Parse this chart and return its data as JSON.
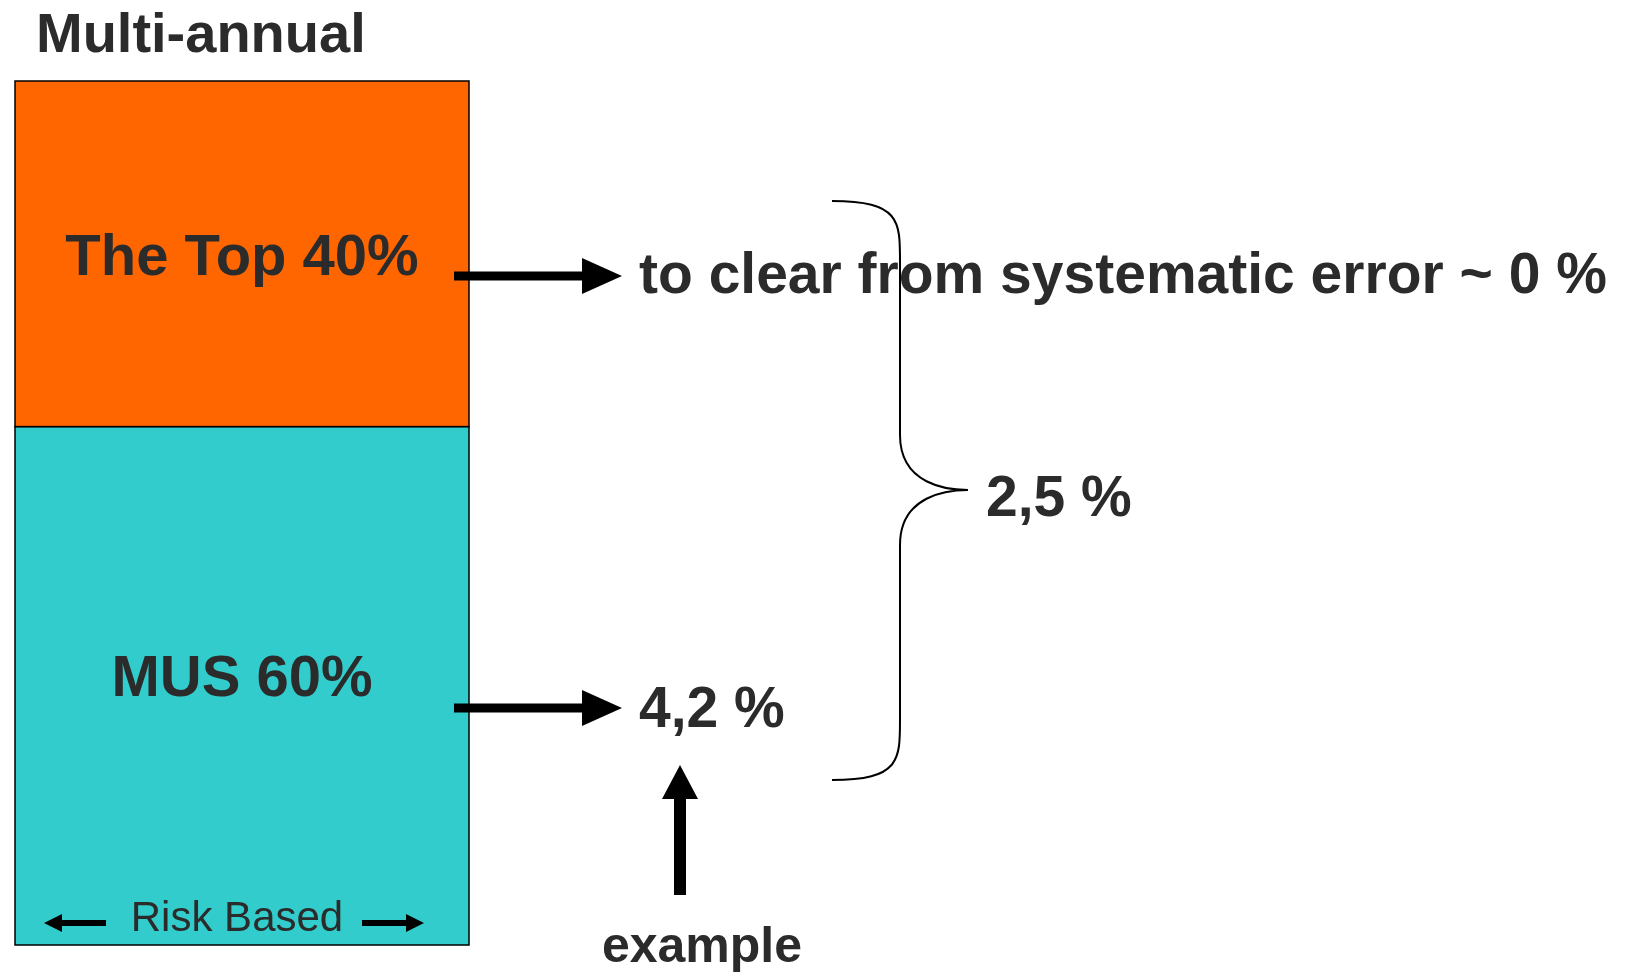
{
  "chart_data": {
    "type": "bar",
    "title": "Multi-annual",
    "stacked": true,
    "categories": [
      null
    ],
    "ylim": [
      0,
      100
    ],
    "series": [
      {
        "color": "#33cccc",
        "values": [
          60
        ],
        "value_labels": [
          "MUS 60%"
        ]
      },
      {
        "color": "#ff6600",
        "values": [
          40
        ],
        "value_labels": [
          "The Top 40%"
        ]
      }
    ],
    "annotations": [
      "to clear from systematic error ~ 0 %",
      "4,2 %",
      "2,5 %",
      "example",
      "Risk Based"
    ]
  }
}
